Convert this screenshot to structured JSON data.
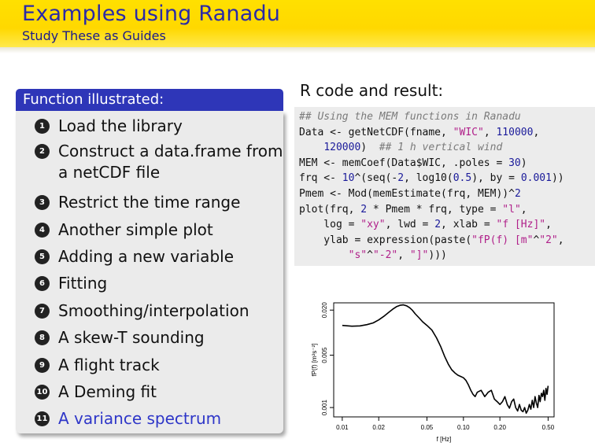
{
  "header": {
    "title": "Examples using Ranadu",
    "subtitle": "Study These as Guides",
    "bg_color": "#ffde00",
    "title_color": "#2a2aa8"
  },
  "block": {
    "title": "Function illustrated:",
    "accent": "#2e36b8",
    "items": [
      {
        "num": "1",
        "lines": [
          "Load the library"
        ]
      },
      {
        "num": "2",
        "lines": [
          "Construct a data.frame from",
          "a netCDF file"
        ]
      },
      {
        "num": "3",
        "lines": [
          "Restrict the time range"
        ]
      },
      {
        "num": "4",
        "lines": [
          "Another simple plot"
        ]
      },
      {
        "num": "5",
        "lines": [
          "Adding a new variable"
        ]
      },
      {
        "num": "6",
        "lines": [
          "Fitting"
        ]
      },
      {
        "num": "7",
        "lines": [
          "Smoothing/interpolation"
        ]
      },
      {
        "num": "8",
        "lines": [
          "A skew-T sounding"
        ]
      },
      {
        "num": "9",
        "lines": [
          "A flight track"
        ]
      },
      {
        "num": "10",
        "lines": [
          "A Deming fit"
        ]
      },
      {
        "num": "11",
        "lines": [
          "A variance spectrum"
        ]
      }
    ]
  },
  "right": {
    "heading": "R code and result:",
    "code_lines": [
      [
        {
          "t": "## Using the MEM functions in Ranadu",
          "c": "cm"
        }
      ],
      [
        {
          "t": "Data <- getNetCDF(fname, "
        },
        {
          "t": "\"WIC\"",
          "c": "st"
        },
        {
          "t": ", "
        },
        {
          "t": "110000",
          "c": "nu"
        },
        {
          "t": ","
        }
      ],
      [
        {
          "t": "    "
        },
        {
          "t": "120000",
          "c": "nu"
        },
        {
          "t": ")  "
        },
        {
          "t": "## 1 h vertical wind",
          "c": "cm"
        }
      ],
      [
        {
          "t": "MEM <- memCoef(Data$WIC, .poles = "
        },
        {
          "t": "30",
          "c": "nu"
        },
        {
          "t": ")"
        }
      ],
      [
        {
          "t": "frq <- "
        },
        {
          "t": "10",
          "c": "nu"
        },
        {
          "t": "^(seq(-"
        },
        {
          "t": "2",
          "c": "nu"
        },
        {
          "t": ", log10("
        },
        {
          "t": "0.5",
          "c": "nu"
        },
        {
          "t": "), by = "
        },
        {
          "t": "0.001",
          "c": "nu"
        },
        {
          "t": "))"
        }
      ],
      [
        {
          "t": "Pmem <- Mod(memEstimate(frq, MEM))^"
        },
        {
          "t": "2",
          "c": "nu"
        }
      ],
      [
        {
          "t": "plot(frq, "
        },
        {
          "t": "2",
          "c": "nu"
        },
        {
          "t": " * Pmem * frq, type = "
        },
        {
          "t": "\"l\"",
          "c": "st"
        },
        {
          "t": ","
        }
      ],
      [
        {
          "t": "    log = "
        },
        {
          "t": "\"xy\"",
          "c": "st"
        },
        {
          "t": ", lwd = "
        },
        {
          "t": "2",
          "c": "nu"
        },
        {
          "t": ", xlab = "
        },
        {
          "t": "\"f [Hz]\"",
          "c": "st"
        },
        {
          "t": ","
        }
      ],
      [
        {
          "t": "    ylab = expression(paste("
        },
        {
          "t": "\"fP(f) [m\"",
          "c": "st"
        },
        {
          "t": "^"
        },
        {
          "t": "\"2\"",
          "c": "st"
        },
        {
          "t": ","
        }
      ],
      [
        {
          "t": "        "
        },
        {
          "t": "\"s\"",
          "c": "st"
        },
        {
          "t": "^"
        },
        {
          "t": "\"-2\"",
          "c": "st"
        },
        {
          "t": ", "
        },
        {
          "t": "\"]\"",
          "c": "st"
        },
        {
          "t": ")))"
        }
      ]
    ]
  },
  "chart_data": {
    "type": "line",
    "xlabel": "f [Hz]",
    "ylabel": "fP(f) [m²s⁻²]",
    "xscale": "log",
    "yscale": "log",
    "xlim": [
      0.0085,
      0.56
    ],
    "ylim": [
      0.00075,
      0.025
    ],
    "xticks": [
      {
        "v": 0.01,
        "l": "0.01"
      },
      {
        "v": 0.02,
        "l": "0.02"
      },
      {
        "v": 0.05,
        "l": "0.05"
      },
      {
        "v": 0.1,
        "l": "0.10"
      },
      {
        "v": 0.2,
        "l": "0.20"
      },
      {
        "v": 0.5,
        "l": "0.50"
      }
    ],
    "yticks": [
      {
        "v": 0.001,
        "l": "0.001"
      },
      {
        "v": 0.005,
        "l": "0.005"
      },
      {
        "v": 0.02,
        "l": "0.020"
      }
    ],
    "grid": false,
    "series": [
      {
        "x": [
          0.01,
          0.012,
          0.014,
          0.016,
          0.018,
          0.02,
          0.022,
          0.024,
          0.026,
          0.028,
          0.03,
          0.032,
          0.034,
          0.036,
          0.038,
          0.04,
          0.043,
          0.046,
          0.05,
          0.055,
          0.06,
          0.065,
          0.07,
          0.075,
          0.08,
          0.085,
          0.09,
          0.095,
          0.1,
          0.105,
          0.11,
          0.115,
          0.12,
          0.125,
          0.13,
          0.14,
          0.15,
          0.16,
          0.17,
          0.18,
          0.19,
          0.2,
          0.21,
          0.22,
          0.23,
          0.24,
          0.25,
          0.26,
          0.27,
          0.28,
          0.29,
          0.3,
          0.31,
          0.32,
          0.33,
          0.34,
          0.35,
          0.36,
          0.37,
          0.38,
          0.39,
          0.4,
          0.41,
          0.42,
          0.43,
          0.44,
          0.45,
          0.46,
          0.47,
          0.48,
          0.49,
          0.5
        ],
        "y": [
          0.0125,
          0.0122,
          0.0123,
          0.0128,
          0.0135,
          0.0148,
          0.0165,
          0.0185,
          0.0205,
          0.0222,
          0.0232,
          0.0235,
          0.0228,
          0.0215,
          0.0198,
          0.0178,
          0.0158,
          0.014,
          0.0125,
          0.0108,
          0.0085,
          0.0065,
          0.0048,
          0.0038,
          0.0032,
          0.0029,
          0.0027,
          0.0026,
          0.0025,
          0.0023,
          0.002,
          0.0017,
          0.0015,
          0.0014,
          0.0016,
          0.0017,
          0.0014,
          0.0016,
          0.0017,
          0.0013,
          0.0012,
          0.0011,
          0.0012,
          0.0014,
          0.0011,
          0.00098,
          0.0012,
          0.0013,
          0.001,
          0.0009,
          0.0011,
          0.00092,
          0.00088,
          0.001,
          0.00084,
          0.00092,
          0.0011,
          0.00095,
          0.00125,
          0.001,
          0.0014,
          0.00115,
          0.001,
          0.00145,
          0.0012,
          0.00155,
          0.0014,
          0.0017,
          0.00125,
          0.0018,
          0.0015,
          0.00195
        ]
      }
    ]
  }
}
